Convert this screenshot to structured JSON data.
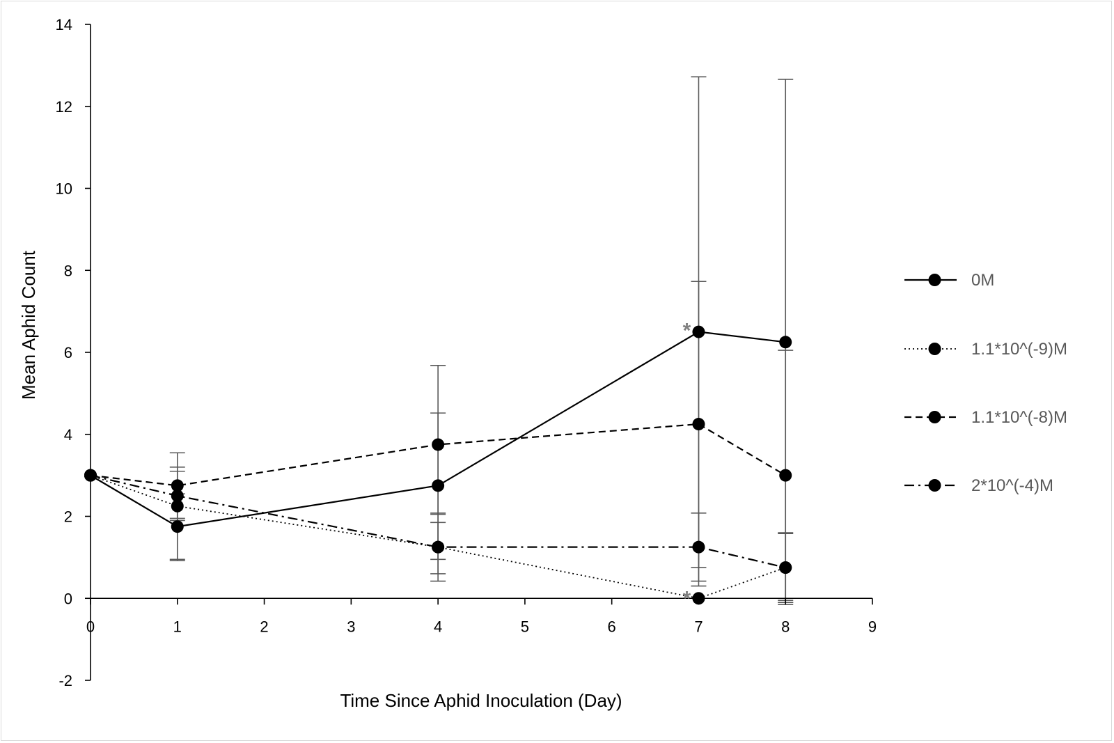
{
  "chart_data": {
    "type": "line",
    "xlabel": "Time Since Aphid Inoculation (Day)",
    "ylabel": "Mean Aphid Count",
    "xlim": [
      0,
      9
    ],
    "ylim": [
      -2,
      14
    ],
    "x_ticks": [
      0,
      1,
      2,
      3,
      4,
      5,
      6,
      7,
      8,
      9
    ],
    "y_ticks": [
      -2,
      0,
      2,
      4,
      6,
      8,
      10,
      12,
      14
    ],
    "x_tick_labels": [
      "0",
      "1",
      "2",
      "3",
      "4",
      "5",
      "6",
      "7",
      "8",
      "9"
    ],
    "y_tick_labels": [
      "-2",
      "0",
      "2",
      "4",
      "6",
      "8",
      "10",
      "12",
      "14"
    ],
    "grid": false,
    "legend_position": "right",
    "series": [
      {
        "name": "0M",
        "line_style": "solid",
        "x": [
          0,
          1,
          4,
          7,
          8
        ],
        "y": [
          3,
          1.75,
          2.75,
          6.5,
          6.25
        ],
        "error_low": [
          null,
          0.95,
          0.42,
          0.3,
          -0.15
        ],
        "error_high": [
          null,
          2.55,
          5.68,
          12.72,
          12.66
        ]
      },
      {
        "name": "1.1*10^(-9)M",
        "line_style": "dotted",
        "x": [
          0,
          1,
          4,
          7,
          8
        ],
        "y": [
          3,
          2.25,
          1.25,
          0,
          0.75
        ],
        "error_low": [
          null,
          0.92,
          0.6,
          0,
          -0.1
        ],
        "error_high": [
          null,
          3.2,
          1.85,
          0,
          1.58
        ]
      },
      {
        "name": "1.1*10^(-8)M",
        "line_style": "dashed",
        "x": [
          0,
          1,
          4,
          7,
          8
        ],
        "y": [
          3,
          2.75,
          3.75,
          4.25,
          3
        ],
        "error_low": [
          null,
          1.95,
          2.05,
          0.75,
          -0.05
        ],
        "error_high": [
          null,
          3.55,
          4.52,
          7.73,
          6.05
        ]
      },
      {
        "name": "2*10^(-4)M",
        "line_style": "dash-dot",
        "x": [
          0,
          1,
          4,
          7,
          8
        ],
        "y": [
          3,
          2.5,
          1.25,
          1.25,
          0.75
        ],
        "error_low": [
          null,
          1.9,
          0.95,
          0.42,
          -0.1
        ],
        "error_high": [
          null,
          3.1,
          2.08,
          2.08,
          1.6
        ]
      }
    ],
    "annotations": [
      {
        "text": "*",
        "x": 7,
        "y": 6.5,
        "color": "#808080"
      },
      {
        "text": "*",
        "x": 7,
        "y": 0,
        "color": "#808080"
      }
    ],
    "colors": {
      "line": "#000000",
      "error_bar": "#595959",
      "axis": "#000000",
      "legend_text": "#595959",
      "annotation": "#808080"
    }
  }
}
